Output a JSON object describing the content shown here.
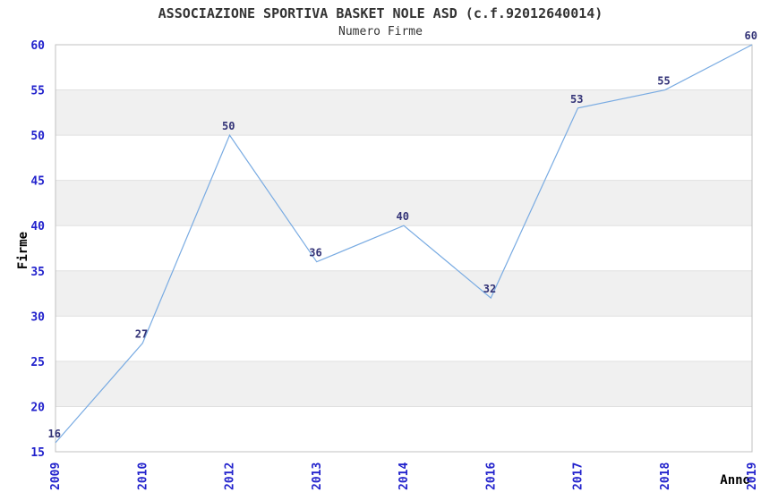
{
  "chart_data": {
    "type": "line",
    "title": "ASSOCIAZIONE SPORTIVA BASKET NOLE ASD (c.f.92012640014)",
    "subtitle": "Numero Firme",
    "xlabel": "Anno",
    "ylabel": "Firme",
    "categories": [
      "2009",
      "2010",
      "2012",
      "2013",
      "2014",
      "2016",
      "2017",
      "2018",
      "2019"
    ],
    "values": [
      16,
      27,
      50,
      36,
      40,
      32,
      53,
      55,
      60
    ],
    "ylim": [
      15,
      60
    ],
    "ytick_step": 5,
    "grid": true,
    "banded_background": true,
    "legend_position": "none",
    "point_labels_shown": true,
    "colors": {
      "line": "#79ABE2",
      "tick_labels": "#2222CC",
      "point_labels": "#333377",
      "band": "#F0F0F0",
      "gridline": "#E0E0E0",
      "border": "#C0C0C0",
      "title": "#333333",
      "axis_titles": "#000000"
    }
  }
}
